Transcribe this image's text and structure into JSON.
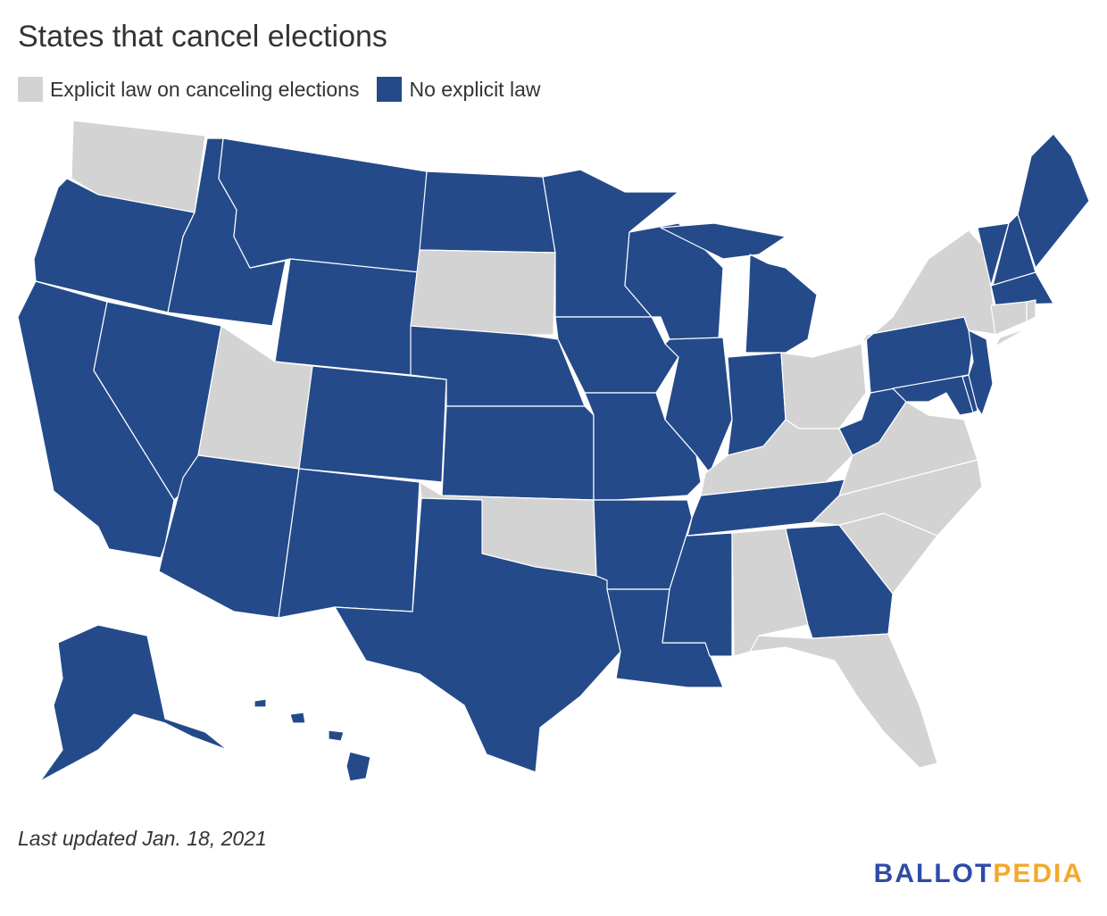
{
  "title": "States that cancel elections",
  "legend": [
    {
      "label": "Explicit law on canceling elections",
      "color": "#d3d3d3"
    },
    {
      "label": "No explicit law",
      "color": "#244a8a"
    }
  ],
  "states_explicit_law": [
    "WA",
    "UT",
    "SD",
    "OK",
    "AL",
    "FL",
    "SC",
    "NC",
    "VA",
    "KY",
    "OH",
    "NY",
    "CT",
    "RI"
  ],
  "states_no_explicit_law": [
    "OR",
    "CA",
    "NV",
    "ID",
    "MT",
    "WY",
    "AZ",
    "CO",
    "NM",
    "ND",
    "NE",
    "KS",
    "TX",
    "MN",
    "IA",
    "MO",
    "AR",
    "LA",
    "WI",
    "IL",
    "MI",
    "IN",
    "TN",
    "MS",
    "GA",
    "WV",
    "PA",
    "NJ",
    "MD",
    "DE",
    "VT",
    "NH",
    "ME",
    "MA",
    "AK",
    "HI"
  ],
  "footer": "Last updated Jan. 18, 2021",
  "logo": {
    "part1": "BALLOT",
    "part2": "PEDIA",
    "color1": "#2f4ba8",
    "color2": "#f3a92b"
  }
}
